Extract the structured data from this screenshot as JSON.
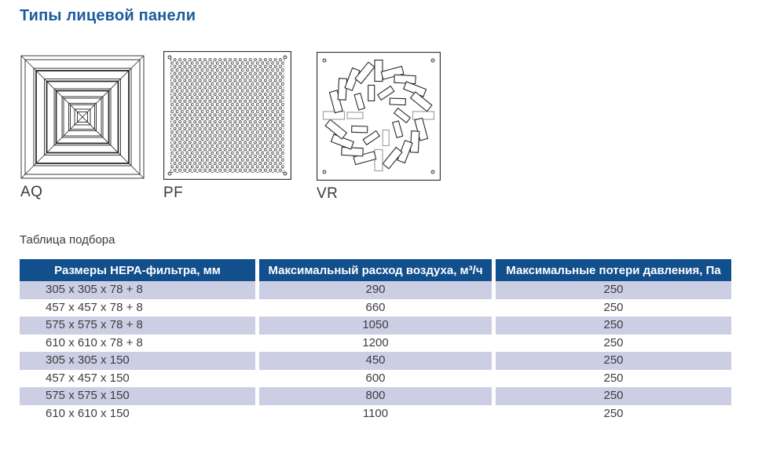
{
  "title": "Типы лицевой панели",
  "panels": [
    {
      "id": "AQ",
      "label": "AQ"
    },
    {
      "id": "PF",
      "label": "PF"
    },
    {
      "id": "VR",
      "label": "VR"
    }
  ],
  "table": {
    "caption": "Таблица подбора",
    "columns": [
      "Размеры HEPA-фильтра, мм",
      "Максимальный расход воздуха, м³/ч",
      "Максимальные потери давления, Па"
    ],
    "rows": [
      [
        "305 x 305 x 78 + 8",
        "290",
        "250"
      ],
      [
        "457 x 457 x 78 + 8",
        "660",
        "250"
      ],
      [
        "575 x 575 x 78 + 8",
        "1050",
        "250"
      ],
      [
        "610 x 610 x 78 + 8",
        "1200",
        "250"
      ],
      [
        "305 x 305 x 150",
        "450",
        "250"
      ],
      [
        "457 x 457 x 150",
        "600",
        "250"
      ],
      [
        "575 x 575 x 150",
        "800",
        "250"
      ],
      [
        "610 x 610 x 150",
        "1100",
        "250"
      ]
    ]
  },
  "colors": {
    "title": "#1b5b9d",
    "header_bg": "#124f8d",
    "stripe": "#cccfe3",
    "text": "#3c3c44"
  }
}
